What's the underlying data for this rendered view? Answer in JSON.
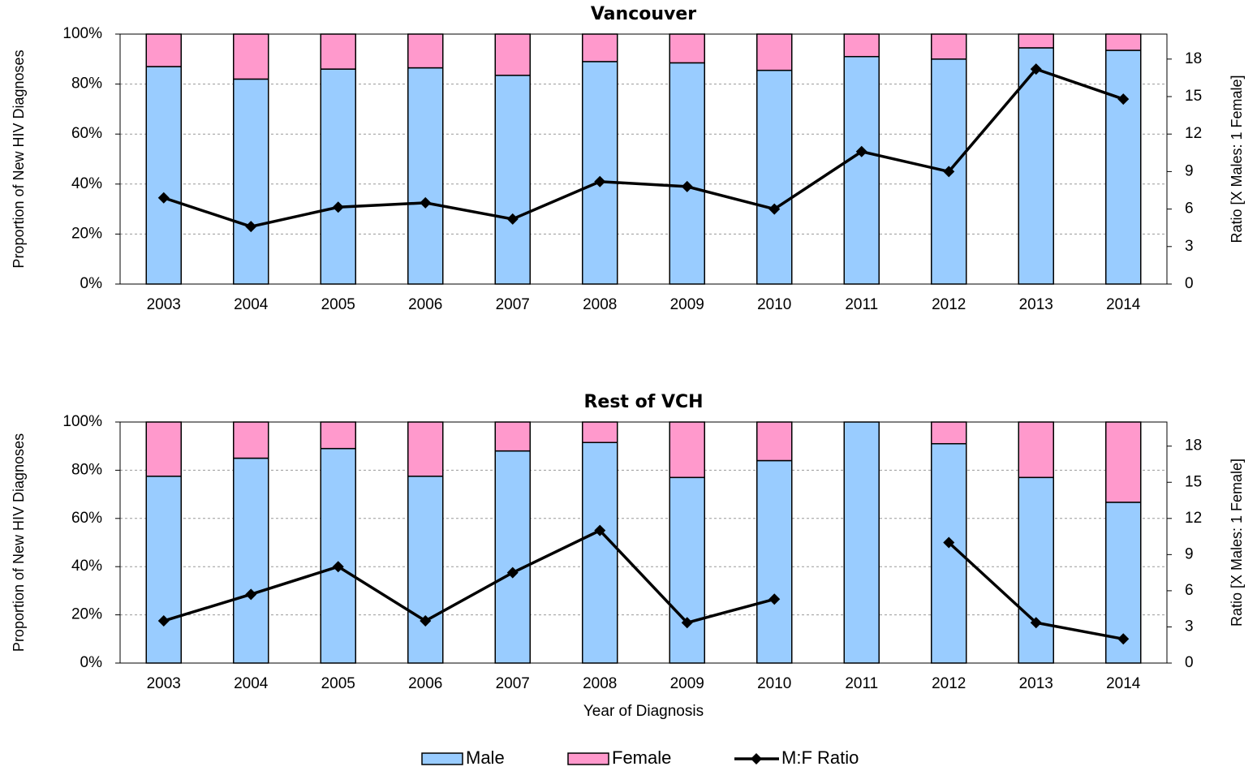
{
  "chart_data": [
    {
      "type": "bar",
      "title": "Vancouver",
      "ylabel": "Proportion of New HIV Diagnoses",
      "y2label": "Ratio [X Males: 1 Female]",
      "stacked": true,
      "grid": true,
      "categories": [
        "2003",
        "2004",
        "2005",
        "2006",
        "2007",
        "2008",
        "2009",
        "2010",
        "2011",
        "2012",
        "2013",
        "2014"
      ],
      "series": [
        {
          "name": "Male",
          "color": "#99ccff",
          "values": [
            87,
            82,
            86,
            86.5,
            83.5,
            89,
            88.5,
            85.5,
            91,
            90,
            94.5,
            93.5
          ]
        },
        {
          "name": "Female",
          "color": "#ff99cc",
          "values": [
            13,
            18,
            14,
            13.5,
            16.5,
            11,
            11.5,
            14.5,
            9,
            10,
            5.5,
            6.5
          ]
        },
        {
          "name": "M:F Ratio",
          "color": "#000000",
          "type": "line",
          "axis": "y2",
          "values": [
            6.9,
            4.6,
            6.15,
            6.5,
            5.2,
            8.2,
            7.8,
            6.0,
            10.6,
            9.0,
            17.2,
            14.8
          ]
        }
      ],
      "ylim": [
        0,
        100
      ],
      "yticks": [
        {
          "value": 0,
          "label": "0%"
        },
        {
          "value": 20,
          "label": "20%"
        },
        {
          "value": 40,
          "label": "40%"
        },
        {
          "value": 60,
          "label": "60%"
        },
        {
          "value": 80,
          "label": "80%"
        },
        {
          "value": 100,
          "label": "100%"
        }
      ],
      "y2lim": [
        0,
        20
      ],
      "y2ticks": [
        0,
        3,
        6,
        9,
        12,
        15,
        18
      ]
    },
    {
      "type": "bar",
      "title": "Rest of VCH",
      "xlabel": "Year of Diagnosis",
      "ylabel": "Proportion of New HIV Diagnoses",
      "y2label": "Ratio [X Males: 1 Female]",
      "stacked": true,
      "grid": true,
      "categories": [
        "2003",
        "2004",
        "2005",
        "2006",
        "2007",
        "2008",
        "2009",
        "2010",
        "2011",
        "2012",
        "2013",
        "2014"
      ],
      "series": [
        {
          "color": "#99ccff",
          "values": [
            77.5,
            85,
            89,
            77.5,
            88,
            91.5,
            77,
            84,
            100,
            91,
            77,
            66.7
          ]
        },
        {
          "color": "#ff99cc",
          "values": [
            22.5,
            15,
            11,
            22.5,
            12,
            8.5,
            23,
            16,
            0,
            9,
            23,
            33.3
          ]
        },
        {
          "color": "#000000",
          "type": "line",
          "axis": "y2",
          "values": [
            3.5,
            5.7,
            8.0,
            3.5,
            7.5,
            11.0,
            3.35,
            5.3,
            null,
            10.0,
            3.35,
            2.0
          ]
        }
      ],
      "ylim": [
        0,
        100
      ],
      "yticks": [
        {
          "value": 0,
          "label": "0%"
        },
        {
          "value": 20,
          "label": "20%"
        },
        {
          "value": 40,
          "label": "40%"
        },
        {
          "value": 60,
          "label": "60%"
        },
        {
          "value": 80,
          "label": "80%"
        },
        {
          "value": 100,
          "label": "100%"
        }
      ],
      "y2lim": [
        0,
        20
      ],
      "y2ticks": [
        0,
        3,
        6,
        9,
        12,
        15,
        18
      ]
    }
  ]
}
